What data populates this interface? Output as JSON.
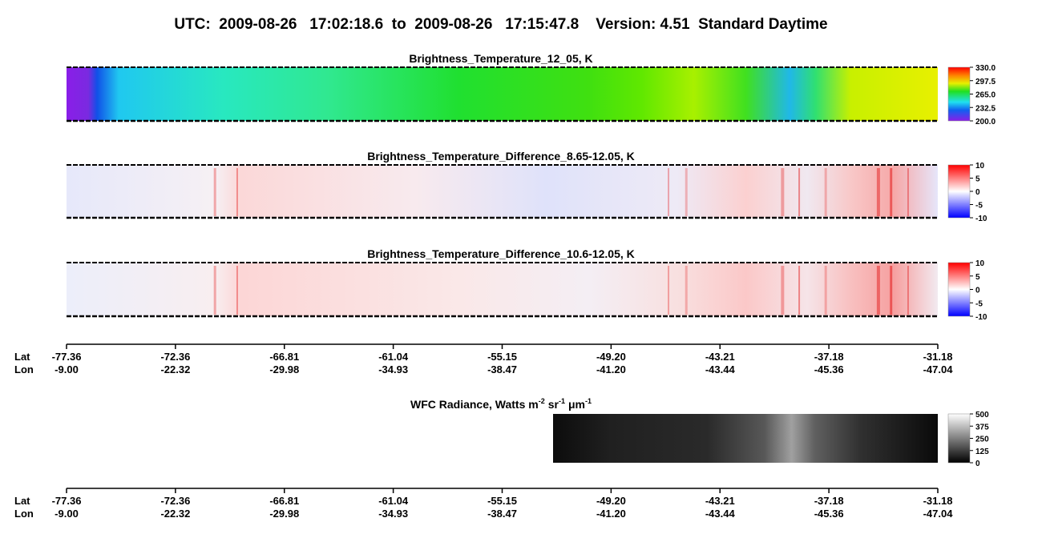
{
  "title": "UTC:  2009-08-26   17:02:18.6  to  2009-08-26   17:15:47.8    Version: 4.51  Standard Daytime",
  "panels": [
    {
      "title": "Brightness_Temperature_12_05, K",
      "colorbar": [
        "330.0",
        "297.5",
        "265.0",
        "232.5",
        "200.0"
      ]
    },
    {
      "title": "Brightness_Temperature_Difference_8.65-12.05, K",
      "colorbar": [
        "10",
        "5",
        "0",
        "-5",
        "-10"
      ]
    },
    {
      "title": "Brightness_Temperature_Difference_10.6-12.05, K",
      "colorbar": [
        "10",
        "5",
        "0",
        "-5",
        "-10"
      ]
    }
  ],
  "wfc": {
    "title_parts": [
      "WFC Radiance, Watts m",
      "-2",
      "sr",
      "-1",
      "μm",
      "-1"
    ],
    "colorbar": [
      "500",
      "375",
      "250",
      "125",
      "0"
    ]
  },
  "axes": [
    {
      "lat_label": "Lat",
      "lon_label": "Lon",
      "lat": [
        "-77.36",
        "-72.36",
        "-66.81",
        "-61.04",
        "-55.15",
        "-49.20",
        "-43.21",
        "-37.18",
        "-31.18"
      ],
      "lon": [
        "-9.00",
        "-22.32",
        "-29.98",
        "-34.93",
        "-38.47",
        "-41.20",
        "-43.44",
        "-45.36",
        "-47.04"
      ]
    },
    {
      "lat_label": "Lat",
      "lon_label": "Lon",
      "lat": [
        "-77.36",
        "-72.36",
        "-66.81",
        "-61.04",
        "-55.15",
        "-49.20",
        "-43.21",
        "-37.18",
        "-31.18"
      ],
      "lon": [
        "-9.00",
        "-22.32",
        "-29.98",
        "-34.93",
        "-38.47",
        "-41.20",
        "-43.44",
        "-45.36",
        "-47.04"
      ]
    }
  ]
}
